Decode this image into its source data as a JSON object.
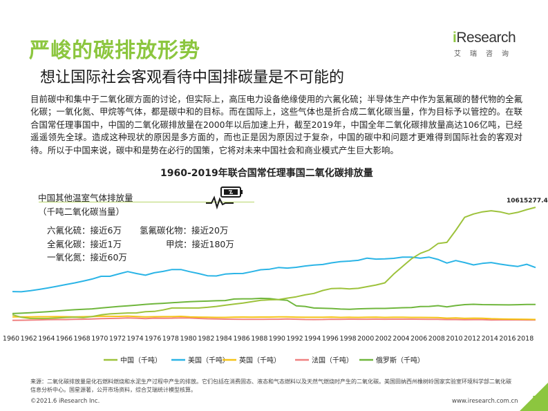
{
  "page": {
    "title": "严峻的碳排放形势",
    "subtitle": "想让国际社会客观看待中国排碳量是不可能的",
    "logo_main": "Research",
    "logo_i": "i",
    "logo_sub": "艾瑞咨询",
    "paragraph": "目前碳中和集中于二氧化碳方面的讨论，但实际上，高压电力设备绝缘使用的六氟化硫；半导体生产中作为氢氟碳的替代物的全氟化碳；一氧化氮、甲烷等气体，都是碳中和的目标。而在国际上，这些气体也是折合成二氧化碳当量，作为目标予以管控的。在联合国常任理事国中，中国的二氧化碳排放量在2000年以后加速上升，截至2019年，中国全年二氧化碳排放量高达106亿吨，已经遥遥领先全球。造成这种现状的原因是多方面的，而也正是因为原因过于复杂，中国的碳中和问题才更难得到国际社会的客观对待。所以于中国来说，碳中和是势在必行的国策，它将对未来中国社会和商业模式产生巨大影响。",
    "footnote": "来源：二氧化碳排放量是化石燃料燃烧和水泥生产过程中产生的排放。它们包括在消费固态、液态和气态燃料以及天然气燃烧时产生的二氧化碳。美国田纳西州橡树岭国家实验室环境科学部二氧化碳信息分析中心。国星源著，公开市场资料，综合艾瑞统计模型核算。",
    "copyright": "©2021.6 iResearch Inc.",
    "website": "www.iresearch.com.cn",
    "page_number": "5"
  },
  "gas": {
    "title": "中国其他温室气体排放量",
    "unit": "（千吨二氧化碳当量）",
    "items": [
      {
        "label": "六氟化硫：接近6万"
      },
      {
        "label": "氢氟碳化物：接近20万"
      },
      {
        "label": "全氟化碳：接近1万"
      },
      {
        "label": "甲烷：接近180万"
      },
      {
        "label": "一氧化氮：接近60万"
      }
    ]
  },
  "chart_data": {
    "type": "line",
    "title": "1960-2019年联合国常任理事国二氧化碳排放量",
    "peak_label": "10615277.4",
    "x": [
      1960,
      1961,
      1962,
      1963,
      1964,
      1965,
      1966,
      1967,
      1968,
      1969,
      1970,
      1971,
      1972,
      1973,
      1974,
      1975,
      1976,
      1977,
      1978,
      1979,
      1980,
      1981,
      1982,
      1983,
      1984,
      1985,
      1986,
      1987,
      1988,
      1989,
      1990,
      1991,
      1992,
      1993,
      1994,
      1995,
      1996,
      1997,
      1998,
      1999,
      2000,
      2001,
      2002,
      2003,
      2004,
      2005,
      2006,
      2007,
      2008,
      2009,
      2010,
      2011,
      2012,
      2013,
      2014,
      2015,
      2016,
      2017,
      2018,
      2019
    ],
    "x_tick_labels": [
      "1960",
      "1962",
      "1964",
      "1966",
      "1968",
      "1970",
      "1972",
      "1974",
      "1976",
      "1978",
      "1980",
      "1982",
      "1984",
      "1986",
      "1988",
      "1990",
      "1992",
      "1994",
      "1996",
      "1998",
      "2000",
      "2002",
      "2004",
      "2006",
      "2008",
      "2010",
      "2012",
      "2014",
      "2016",
      "2018"
    ],
    "ylim": [
      0,
      11000000
    ],
    "series": [
      {
        "name": "中国（千吨）",
        "color": "#9dc23b",
        "values": [
          780000,
          550000,
          440000,
          440000,
          440000,
          480000,
          530000,
          560000,
          520000,
          620000,
          770000,
          860000,
          900000,
          940000,
          950000,
          1060000,
          1090000,
          1220000,
          1400000,
          1400000,
          1400000,
          1400000,
          1460000,
          1540000,
          1650000,
          1760000,
          1850000,
          1970000,
          2100000,
          2150000,
          2170000,
          2300000,
          2420000,
          2600000,
          2730000,
          3000000,
          3180000,
          3200000,
          3150000,
          3200000,
          3350000,
          3500000,
          3700000,
          4500000,
          5200000,
          5900000,
          6400000,
          6700000,
          7300000,
          7400000,
          8500000,
          9700000,
          10000000,
          10200000,
          10300000,
          10200000,
          10000000,
          10150000,
          10400000,
          10615277
        ]
      },
      {
        "name": "美国（千吨）",
        "color": "#2ab4e6",
        "values": [
          2900000,
          2880000,
          2980000,
          3100000,
          3230000,
          3380000,
          3540000,
          3690000,
          3860000,
          4050000,
          4300000,
          4300000,
          4520000,
          4730000,
          4550000,
          4400000,
          4620000,
          4750000,
          4920000,
          4920000,
          4720000,
          4550000,
          4350000,
          4330000,
          4500000,
          4550000,
          4560000,
          4720000,
          4900000,
          4950000,
          5100000,
          5050000,
          5120000,
          5240000,
          5330000,
          5380000,
          5530000,
          5640000,
          5690000,
          5760000,
          5960000,
          5870000,
          5890000,
          5940000,
          6050000,
          6050000,
          5960000,
          6050000,
          5840000,
          5510000,
          5740000,
          5560000,
          5340000,
          5480000,
          5560000,
          5410000,
          5300000,
          5200000,
          5400000,
          5100000
        ]
      },
      {
        "name": "英国（千吨）",
        "color": "#f5c316",
        "values": [
          580000,
          580000,
          590000,
          600000,
          600000,
          610000,
          600000,
          590000,
          600000,
          620000,
          650000,
          640000,
          630000,
          660000,
          620000,
          590000,
          600000,
          610000,
          610000,
          630000,
          580000,
          560000,
          550000,
          540000,
          540000,
          560000,
          570000,
          560000,
          570000,
          570000,
          580000,
          580000,
          560000,
          550000,
          550000,
          550000,
          570000,
          540000,
          550000,
          540000,
          550000,
          560000,
          540000,
          550000,
          550000,
          540000,
          540000,
          530000,
          520000,
          470000,
          490000,
          450000,
          470000,
          460000,
          420000,
          400000,
          380000,
          370000,
          360000,
          350000
        ]
      },
      {
        "name": "法国（千吨）",
        "color": "#f08080",
        "values": [
          270000,
          280000,
          290000,
          310000,
          330000,
          340000,
          340000,
          360000,
          370000,
          390000,
          430000,
          440000,
          460000,
          490000,
          470000,
          430000,
          470000,
          460000,
          470000,
          490000,
          480000,
          440000,
          410000,
          400000,
          380000,
          370000,
          360000,
          360000,
          360000,
          370000,
          370000,
          390000,
          370000,
          350000,
          340000,
          350000,
          370000,
          360000,
          380000,
          370000,
          370000,
          380000,
          370000,
          380000,
          380000,
          380000,
          370000,
          360000,
          360000,
          340000,
          340000,
          320000,
          330000,
          330000,
          300000,
          310000,
          310000,
          310000,
          300000,
          300000
        ]
      },
      {
        "name": "俄罗斯（千吨）",
        "color": "#6fb63c",
        "values": [
          890000,
          920000,
          960000,
          1010000,
          1060000,
          1120000,
          1180000,
          1240000,
          1280000,
          1320000,
          1400000,
          1470000,
          1540000,
          1600000,
          1660000,
          1730000,
          1780000,
          1830000,
          1880000,
          1930000,
          1980000,
          2010000,
          2030000,
          2060000,
          2080000,
          2220000,
          2240000,
          2240000,
          2280000,
          2260000,
          2170000,
          2100000,
          1600000,
          1540000,
          1400000,
          1380000,
          1350000,
          1300000,
          1280000,
          1320000,
          1340000,
          1360000,
          1360000,
          1390000,
          1420000,
          1440000,
          1530000,
          1540000,
          1610000,
          1500000,
          1620000,
          1710000,
          1740000,
          1710000,
          1700000,
          1690000,
          1680000,
          1700000,
          1720000,
          1720000
        ]
      }
    ],
    "legend_position": "bottom",
    "grid": false
  }
}
